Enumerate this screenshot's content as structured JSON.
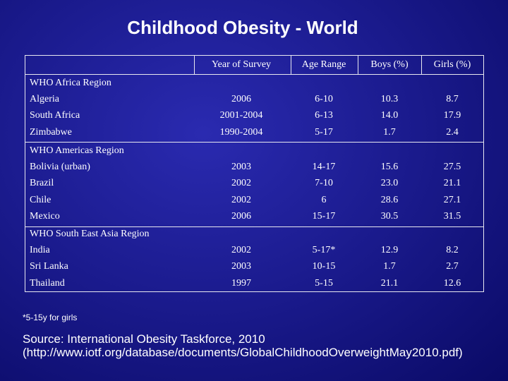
{
  "title": "Childhood Obesity - World",
  "table": {
    "headers": [
      "Year of Survey",
      "Age Range",
      "Boys (%)",
      "Girls (%)"
    ],
    "groups": [
      {
        "region": "WHO Africa Region",
        "rows": [
          [
            "Algeria",
            "2006",
            "6-10",
            "10.3",
            "8.7"
          ],
          [
            "South Africa",
            "2001-2004",
            "6-13",
            "14.0",
            "17.9"
          ],
          [
            "Zimbabwe",
            "1990-2004",
            "5-17",
            "1.7",
            "2.4"
          ]
        ]
      },
      {
        "region": "WHO Americas Region",
        "rows": [
          [
            "Bolivia (urban)",
            "2003",
            "14-17",
            "15.6",
            "27.5"
          ],
          [
            "Brazil",
            "2002",
            "7-10",
            "23.0",
            "21.1"
          ],
          [
            "Chile",
            "2002",
            "6",
            "28.6",
            "27.1"
          ],
          [
            "Mexico",
            "2006",
            "15-17",
            "30.5",
            "31.5"
          ]
        ]
      },
      {
        "region": "WHO South East Asia Region",
        "rows": [
          [
            "India",
            "2002",
            "5-17*",
            "12.9",
            "8.2"
          ],
          [
            "Sri Lanka",
            "2003",
            "10-15",
            "1.7",
            "2.7"
          ],
          [
            "Thailand",
            "1997",
            "5-15",
            "21.1",
            "12.6"
          ]
        ]
      }
    ]
  },
  "footnote": "*5-15y for girls",
  "source": [
    "Source: International Obesity Taskforce, 2010",
    "(http://www.iotf.org/database/documents/GlobalChildhoodOverweightMay2010.pdf)"
  ]
}
